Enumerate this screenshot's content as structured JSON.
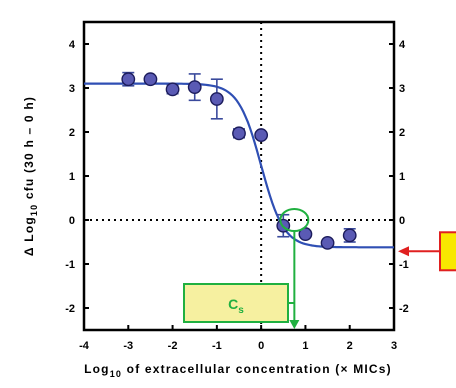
{
  "chart_data": {
    "type": "scatter",
    "xlabel_main": "Log",
    "xlabel_sub": "10",
    "xlabel_rest": " of extracellular concentration (× MICs)",
    "ylabel_main": "Δ Log",
    "ylabel_sub": "10",
    "ylabel_rest": " cfu (30 h – 0 h)",
    "xlim": [
      -4,
      3
    ],
    "ylim": [
      -2.5,
      4.5
    ],
    "x_ticks": [
      -4,
      -3,
      -2,
      -1,
      0,
      1,
      2,
      3
    ],
    "y_ticks": [
      -2,
      -1,
      0,
      1,
      2,
      3,
      4
    ],
    "x_tick_labels": [
      "-4",
      "-3",
      "-2",
      "-1",
      "0",
      "1",
      "2",
      "3"
    ],
    "y_tick_labels": [
      "-2",
      "-1",
      "0",
      "1",
      "2",
      "3",
      "4"
    ],
    "right_y_tick_labels": [
      "-2",
      "-1",
      "0",
      "1",
      "2",
      "3",
      "4"
    ],
    "points": [
      {
        "x": -3.0,
        "y": 3.2,
        "err": 0.15
      },
      {
        "x": -2.5,
        "y": 3.2,
        "err": 0
      },
      {
        "x": -2.0,
        "y": 2.97,
        "err": 0.1
      },
      {
        "x": -1.5,
        "y": 3.02,
        "err": 0.3
      },
      {
        "x": -1.0,
        "y": 2.75,
        "err": 0.45
      },
      {
        "x": -0.5,
        "y": 1.97,
        "err": 0.1
      },
      {
        "x": 0.0,
        "y": 1.93,
        "err": 0
      },
      {
        "x": 0.5,
        "y": -0.13,
        "err": 0.25
      },
      {
        "x": 1.0,
        "y": -0.32,
        "err": 0
      },
      {
        "x": 1.5,
        "y": -0.52,
        "err": 0
      },
      {
        "x": 2.0,
        "y": -0.35,
        "err": 0.15
      }
    ],
    "fit_curve": {
      "top": 3.1,
      "bottom": -0.62,
      "x50": 0.0,
      "slope": 1.7
    },
    "cs": {
      "label_main": "C",
      "label_sub": "s",
      "x": 0.75,
      "y": 0.0
    },
    "colors": {
      "marker_fill": "#5a5ab4",
      "marker_stroke": "#1c1c5c",
      "curve": "#2f4fb4",
      "error_bar": "#3a4a9c",
      "cs_line": "#20b040",
      "cs_box_fill": "#f6f0a0",
      "cs_box_stroke": "#20b040",
      "right_arrow": "#e02020",
      "right_box_fill": "#f8e800",
      "right_box_stroke": "#e02020"
    }
  }
}
